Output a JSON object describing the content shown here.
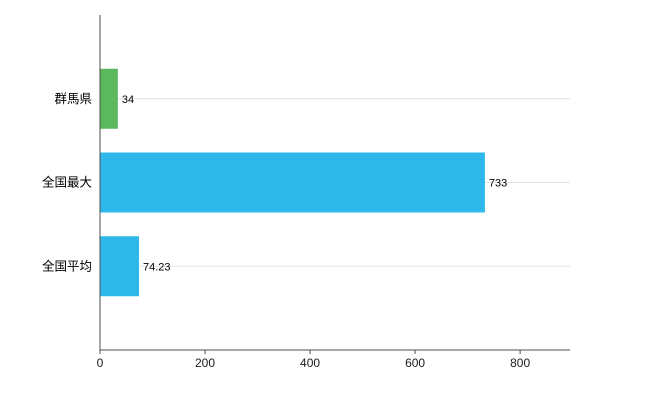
{
  "chart_data": {
    "type": "bar",
    "orientation": "horizontal",
    "title": "",
    "categories": [
      "群馬県",
      "全国最大",
      "全国平均"
    ],
    "values": [
      34,
      733,
      74.23
    ],
    "value_labels": [
      "34",
      "733",
      "74.23"
    ],
    "bar_colors": [
      "#5cb85c",
      "#2eb8ea",
      "#2eb8ea"
    ],
    "x_tick_labels": [
      "0",
      "200",
      "400",
      "600",
      "800"
    ],
    "x_tick_values": [
      0,
      200,
      400,
      600,
      800
    ],
    "xlim": [
      0,
      895
    ],
    "ylabel": "",
    "xlabel": "",
    "legend": "none",
    "grid": "horizontal lines at each category center",
    "background_color": "#ffffff",
    "axis_color": "#4d4d4d",
    "grid_color": "#e4e4e4",
    "tick_label_color": "#1a1a1a",
    "category_label_color": "#000000",
    "value_label_color": "#000000"
  }
}
